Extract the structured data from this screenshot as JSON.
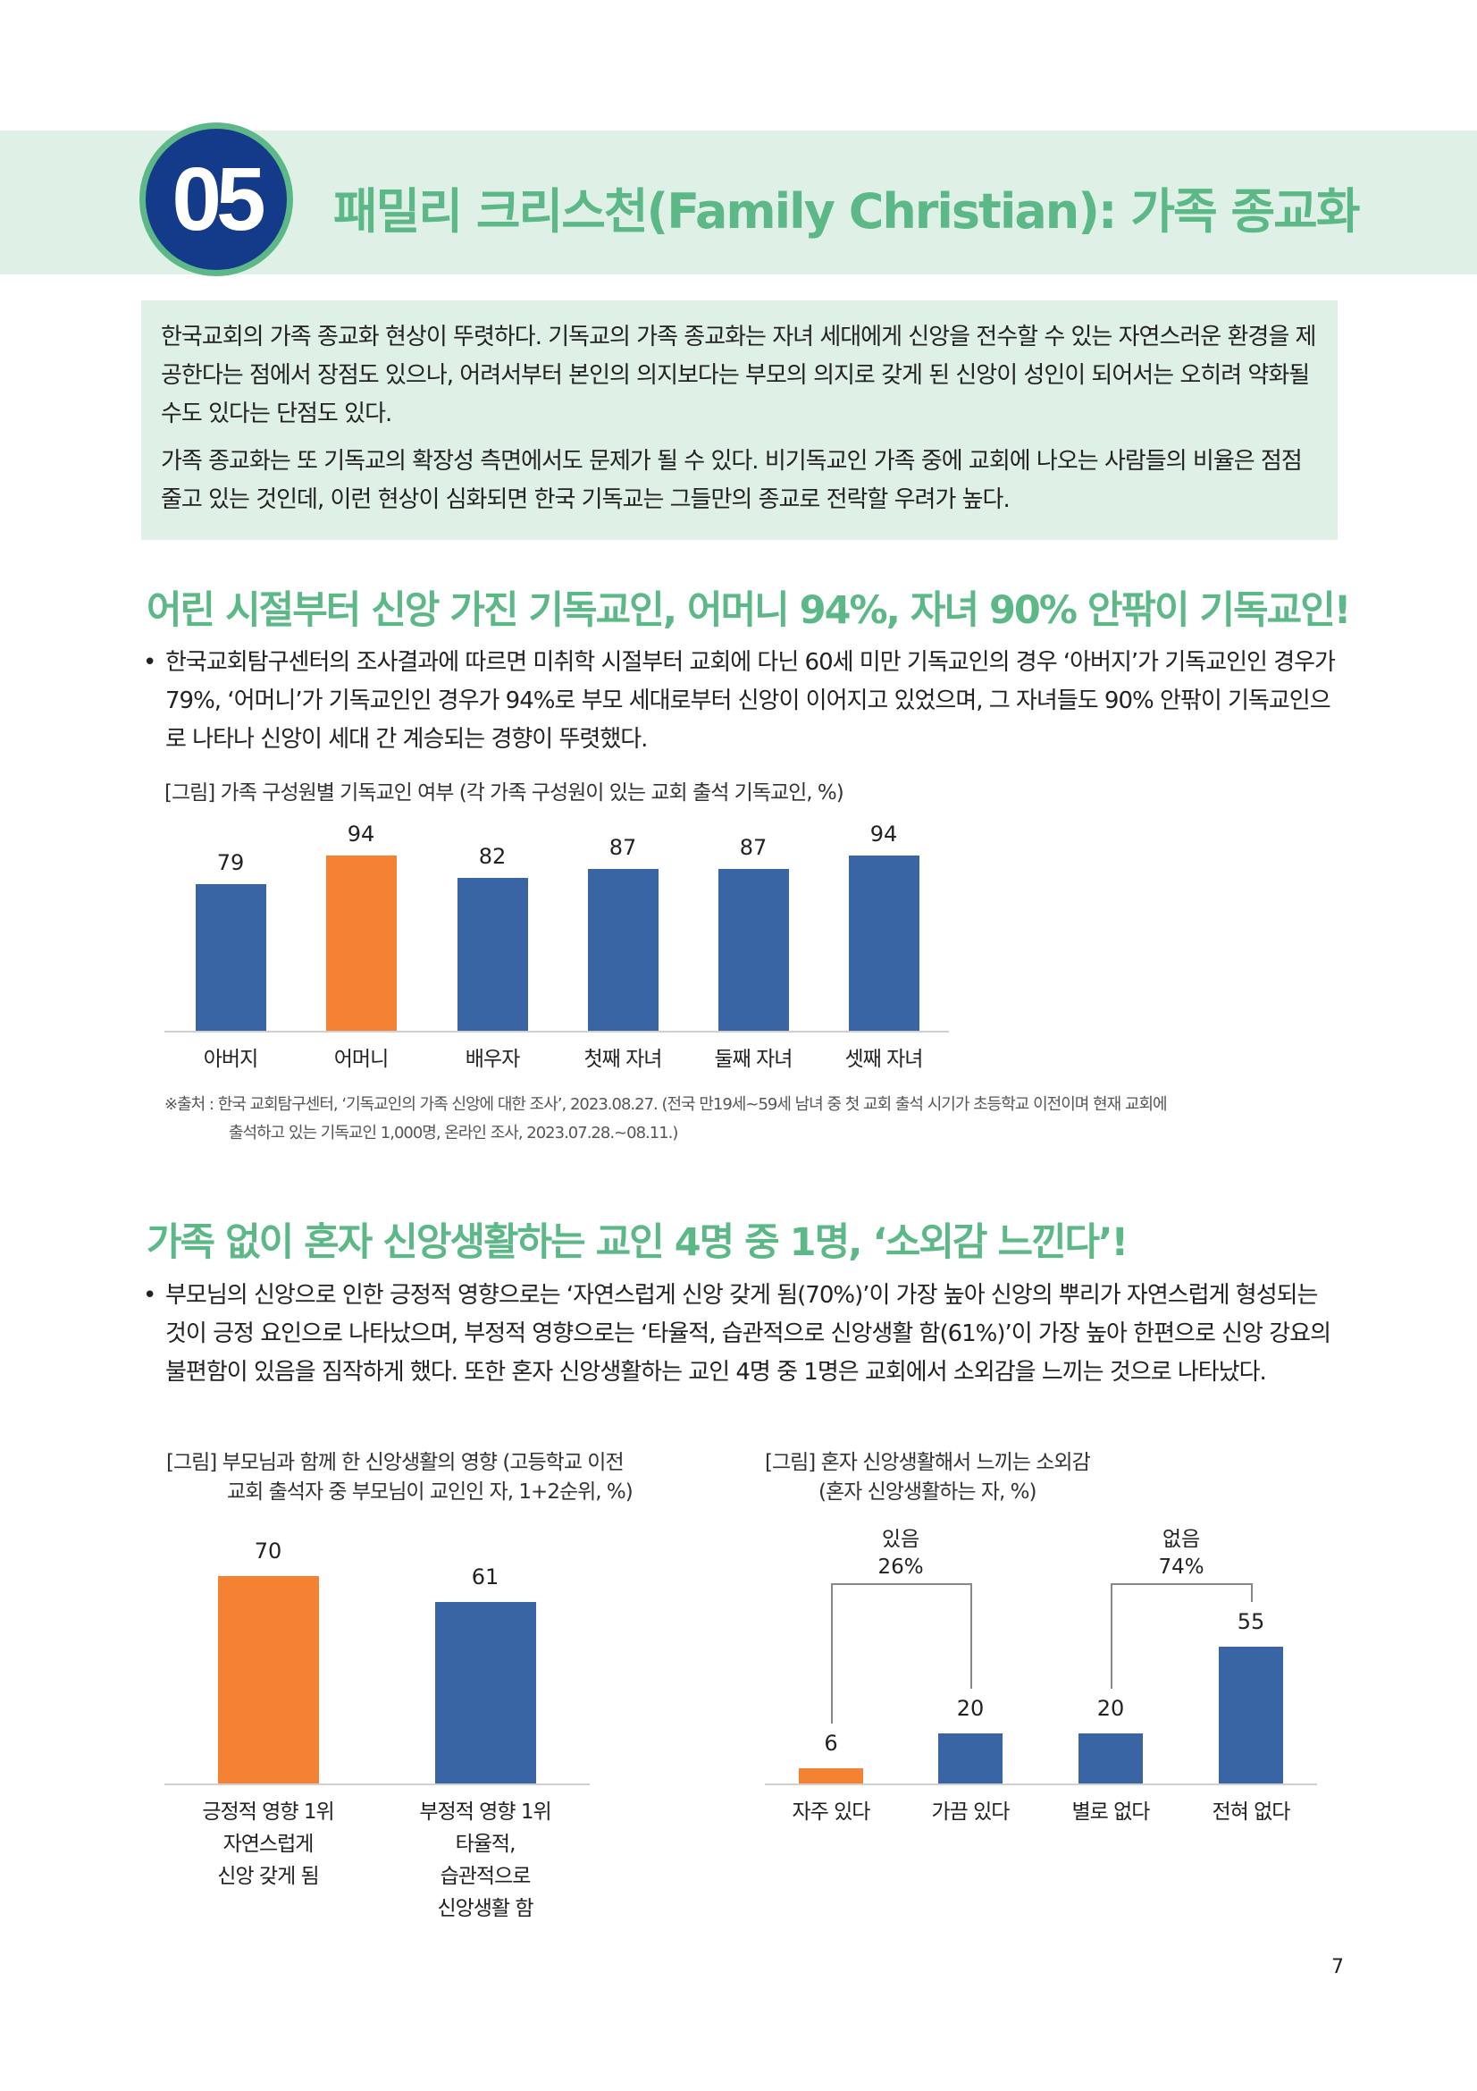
{
  "section": {
    "number": "05",
    "title": "패밀리 크리스천(Family Christian): 가족 종교화"
  },
  "summary": [
    "한국교회의 가족 종교화 현상이 뚜렷하다. 기독교의 가족 종교화는 자녀 세대에게 신앙을 전수할 수 있는 자연스러운 환경을 제공한다는 점에서 장점도 있으나, 어려서부터 본인의 의지보다는 부모의 의지로 갖게 된 신앙이 성인이 되어서는 오히려 약화될 수도 있다는 단점도 있다.",
    "가족 종교화는 또 기독교의 확장성 측면에서도 문제가 될 수 있다. 비기독교인 가족 중에 교회에 나오는 사람들의 비율은 점점 줄고 있는 것인데, 이런 현상이 심화되면 한국 기독교는 그들만의 종교로 전락할 우려가 높다."
  ],
  "heading1": "어린 시절부터 신앙 가진 기독교인, 어머니 94%, 자녀 90% 안팎이 기독교인!",
  "para1": "한국교회탐구센터의 조사결과에 따르면 미취학 시절부터 교회에 다닌 60세 미만 기독교인의 경우 ‘아버지’가 기독교인인 경우가 79%, ‘어머니’가 기독교인인 경우가 94%로 부모 세대로부터 신앙이 이어지고 있었으며, 그 자녀들도 90% 안팎이 기독교인으로 나타나 신앙이 세대 간 계승되는 경향이 뚜렷했다.",
  "bullet": "•",
  "source": [
    "※출처 : 한국 교회탐구센터, ‘기독교인의 가족 신앙에 대한 조사’, 2023.08.27. (전국 만19세~59세 남녀 중 첫 교회 출석 시기가 초등학교 이전이며 현재 교회에",
    "출석하고 있는 기독교인 1,000명, 온라인 조사, 2023.07.28.~08.11.)"
  ],
  "heading2": "가족 없이 혼자 신앙생활하는 교인 4명 중 1명, ‘소외감 느낀다’!",
  "para2": "부모님의 신앙으로 인한 긍정적 영향으로는 ‘자연스럽게 신앙 갖게 됨(70%)’이 가장 높아 신앙의 뿌리가 자연스럽게 형성되는 것이 긍정 요인으로 나타났으며, 부정적 영향으로는 ‘타율적, 습관적으로 신앙생활 함(61%)’이 가장 높아 한편으로 신앙 강요의 불편함이 있음을 짐작하게 했다. 또한 혼자 신앙생활하는 교인 4명 중 1명은 교회에서 소외감을 느끼는 것으로 나타났다.",
  "page_number": "7",
  "colors": {
    "green": "#5cb887",
    "navy": "#143a8a",
    "blue": "#3a65a5",
    "orange": "#f58232"
  },
  "chart_data": [
    {
      "type": "bar",
      "title": "[그림] 가족 구성원별 기독교인 여부 (각 가족 구성원이 있는 교회 출석 기독교인, %)",
      "categories": [
        "아버지",
        "어머니",
        "배우자",
        "첫째 자녀",
        "둘째 자녀",
        "셋째 자녀"
      ],
      "values": [
        79,
        94,
        82,
        87,
        87,
        94
      ],
      "highlight": [
        1
      ],
      "ylim": [
        0,
        100
      ]
    },
    {
      "type": "bar",
      "title": [
        "[그림] 부모님과 함께 한 신앙생활의 영향 (고등학교 이전",
        "교회 출석자 중 부모님이 교인인 자, 1+2순위, %)"
      ],
      "categories": [
        [
          "긍정적 영향 1위",
          "자연스럽게",
          "신앙 갖게 됨"
        ],
        [
          "부정적 영향 1위",
          "타율적,",
          "습관적으로",
          "신앙생활 함"
        ]
      ],
      "values": [
        70,
        61
      ],
      "highlight": [
        0
      ],
      "ylim": [
        0,
        100
      ]
    },
    {
      "type": "bar",
      "title": [
        "[그림] 혼자 신앙생활해서 느끼는 소외감",
        "(혼자 신앙생활하는 자, %)"
      ],
      "categories": [
        "자주 있다",
        "가끔 있다",
        "별로 없다",
        "전혀 없다"
      ],
      "values": [
        6,
        20,
        20,
        55
      ],
      "highlight": [
        0
      ],
      "groups": [
        {
          "label": "있음",
          "value": "26%"
        },
        {
          "label": "없음",
          "value": "74%"
        }
      ],
      "ylim": [
        0,
        100
      ]
    }
  ]
}
